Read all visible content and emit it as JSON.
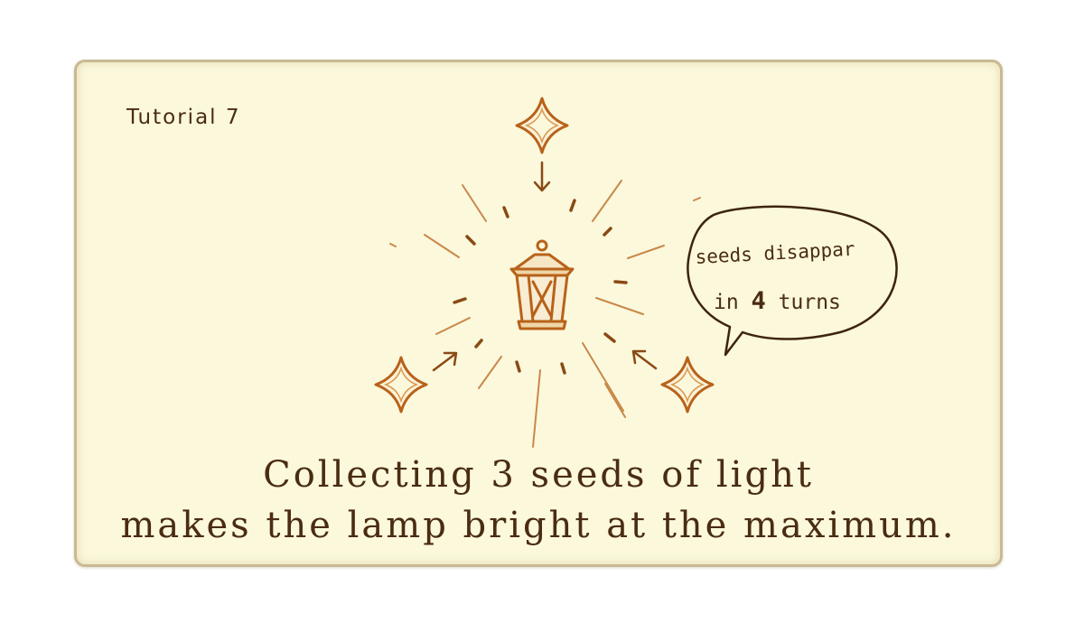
{
  "tutorial": {
    "label": "Tutorial 7"
  },
  "bubble": {
    "line1": "seeds disappar",
    "line2_prefix": "in ",
    "turns": "4",
    "line2_suffix": " turns"
  },
  "caption": {
    "line1": "Collecting 3 seeds of light",
    "line2": "makes the lamp bright at the maximum."
  },
  "icons": {
    "lamp": "lantern-icon",
    "seed": "seed-of-light-icon",
    "arrow": "arrow-icon"
  },
  "colors": {
    "card_background": "#fbf8dc",
    "card_border": "#c9b993",
    "ink": "#4a2c12",
    "sketch": "#b8621a"
  }
}
